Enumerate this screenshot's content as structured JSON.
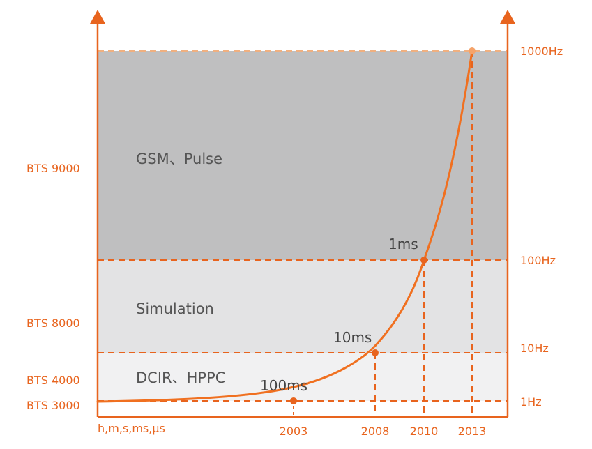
{
  "colors": {
    "accent": "#e8641e",
    "band_dark": "#bfbfc0",
    "band_mid": "#e3e3e4",
    "band_light": "#f1f1f2",
    "band_text": "#555555"
  },
  "bands": [
    {
      "id": "gsm",
      "label": "GSM、Pulse",
      "model": "BTS 9000",
      "frequency": "1000Hz"
    },
    {
      "id": "simulation",
      "label": "Simulation",
      "model": "BTS 8000",
      "frequency": "100Hz"
    },
    {
      "id": "dcir",
      "label": "DCIR、HPPC",
      "model": "BTS 4000",
      "frequency": "10Hz"
    },
    {
      "id": "base",
      "label": "",
      "model": "BTS 3000",
      "frequency": "1Hz"
    }
  ],
  "x_axis": {
    "unit_label": "h,m,s,ms,μs",
    "years": [
      "2003",
      "2008",
      "2010",
      "2013"
    ]
  },
  "milestones": [
    {
      "year": "2003",
      "speed": "100ms"
    },
    {
      "year": "2008",
      "speed": "10ms"
    },
    {
      "year": "2010",
      "speed": "1ms"
    },
    {
      "year": "2013",
      "speed": ""
    }
  ]
}
